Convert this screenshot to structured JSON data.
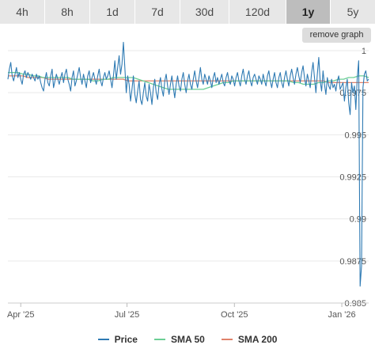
{
  "tabs": [
    {
      "label": "4h",
      "active": false
    },
    {
      "label": "8h",
      "active": false
    },
    {
      "label": "1d",
      "active": false
    },
    {
      "label": "7d",
      "active": false
    },
    {
      "label": "30d",
      "active": false
    },
    {
      "label": "120d",
      "active": false
    },
    {
      "label": "1y",
      "active": true
    },
    {
      "label": "5y",
      "active": false
    }
  ],
  "remove_graph_label": "remove graph",
  "colors": {
    "price": "#2e7ab3",
    "sma50": "#6ccf95",
    "sma200": "#e0826a",
    "grid": "#e9e9e9",
    "tab_bg": "#e7e7e7",
    "tab_active_bg": "#bdbdbd"
  },
  "chart_data": {
    "type": "line",
    "title": "",
    "xlabel": "",
    "ylabel": "",
    "ylim": [
      0.985,
      1.0
    ],
    "y_ticks": [
      1,
      0.9975,
      0.995,
      0.9925,
      0.99,
      0.9875,
      0.985
    ],
    "y_tick_labels": [
      "1",
      "0.9975",
      "0.995",
      "0.9925",
      "0.99",
      "0.9875",
      "0.985"
    ],
    "x_ticks": [
      "Apr '25",
      "Jul '25",
      "Oct '25",
      "Jan '26"
    ],
    "x_tick_dates": [
      "2025-04-01",
      "2025-07-01",
      "2025-10-01",
      "2026-01-01"
    ],
    "x_range": [
      "2025-03-21",
      "2026-01-24"
    ],
    "grid": true,
    "legend_position": "bottom",
    "series": [
      {
        "name": "Price",
        "start_date": "2025-03-21",
        "values": [
          0.9983,
          0.9989,
          0.9993,
          0.9985,
          0.9982,
          0.9986,
          0.999,
          0.9984,
          0.9987,
          0.9983,
          0.998,
          0.9986,
          0.9988,
          0.9984,
          0.9987,
          0.9985,
          0.9983,
          0.9986,
          0.9984,
          0.9982,
          0.9986,
          0.9983,
          0.9985,
          0.9981,
          0.9978,
          0.9976,
          0.9983,
          0.9987,
          0.9981,
          0.9979,
          0.9985,
          0.9989,
          0.9978,
          0.9982,
          0.9986,
          0.9983,
          0.998,
          0.9984,
          0.9987,
          0.9981,
          0.9986,
          0.9989,
          0.9983,
          0.998,
          0.9976,
          0.9984,
          0.9988,
          0.9979,
          0.9982,
          0.9986,
          0.999,
          0.9984,
          0.998,
          0.9986,
          0.9982,
          0.9978,
          0.9985,
          0.9988,
          0.9981,
          0.9984,
          0.9987,
          0.9983,
          0.998,
          0.9985,
          0.9989,
          0.9982,
          0.9979,
          0.9984,
          0.9987,
          0.9983,
          0.9985,
          0.9988,
          0.9983,
          0.9978,
          0.9985,
          0.9994,
          0.9983,
          0.999,
          0.9997,
          0.9986,
          0.9992,
          1.0005,
          0.999,
          0.9975,
          0.9985,
          0.998,
          0.997,
          0.9977,
          0.9985,
          0.9974,
          0.9969,
          0.9976,
          0.9982,
          0.9971,
          0.9968,
          0.9975,
          0.9981,
          0.9973,
          0.997,
          0.998,
          0.9975,
          0.9968,
          0.9978,
          0.9983,
          0.9975,
          0.9971,
          0.998,
          0.9984,
          0.9977,
          0.9973,
          0.9982,
          0.9986,
          0.9979,
          0.9974,
          0.998,
          0.9985,
          0.9978,
          0.9972,
          0.998,
          0.9985,
          0.9979,
          0.9976,
          0.9983,
          0.9987,
          0.998,
          0.9975,
          0.9982,
          0.9986,
          0.998,
          0.9977,
          0.9983,
          0.9988,
          0.9982,
          0.9978,
          0.9984,
          0.999,
          0.9983,
          0.998,
          0.9986,
          0.9983,
          0.998,
          0.9985,
          0.9982,
          0.9978,
          0.9984,
          0.9987,
          0.9981,
          0.9984,
          0.998,
          0.9983,
          0.9986,
          0.9981,
          0.9979,
          0.9984,
          0.9987,
          0.9982,
          0.998,
          0.9985,
          0.9983,
          0.9979,
          0.9984,
          0.9987,
          0.9982,
          0.9979,
          0.9985,
          0.9989,
          0.9983,
          0.998,
          0.9985,
          0.9988,
          0.9982,
          0.9979,
          0.9984,
          0.9986,
          0.9983,
          0.998,
          0.9985,
          0.9983,
          0.998,
          0.9986,
          0.9982,
          0.9979,
          0.9985,
          0.9988,
          0.9982,
          0.9978,
          0.9983,
          0.9987,
          0.9981,
          0.9978,
          0.9984,
          0.9987,
          0.9981,
          0.9978,
          0.9984,
          0.9988,
          0.9983,
          0.9979,
          0.9985,
          0.9989,
          0.9984,
          0.998,
          0.9986,
          0.999,
          0.9985,
          0.9981,
          0.9987,
          0.9991,
          0.9984,
          0.9979,
          0.9986,
          0.9982,
          0.9978,
          0.9987,
          0.9993,
          0.9984,
          0.9975,
          0.9986,
          0.9996,
          0.9982,
          0.9976,
          0.9988,
          0.998,
          0.9974,
          0.9984,
          0.9979,
          0.9977,
          0.9983,
          0.9978,
          0.998,
          0.9976,
          0.9982,
          0.9985,
          0.9977,
          0.9979,
          0.9981,
          0.997,
          0.9978,
          0.9983,
          0.9969,
          0.9962,
          0.9981,
          0.9975,
          0.9979,
          0.9965,
          0.9984,
          0.9994,
          0.986,
          0.9872,
          0.9978,
          0.9986,
          0.9988,
          0.9982,
          0.9983
        ]
      },
      {
        "name": "SMA 50",
        "start_date": "2025-03-21",
        "values": [
          0.9987,
          0.9987,
          0.9987,
          0.9986,
          0.9986,
          0.9985,
          0.9985,
          0.9984,
          0.9984,
          0.9984,
          0.9984,
          0.9984,
          0.9984,
          0.9983,
          0.9983,
          0.9983,
          0.9983,
          0.9982,
          0.9982,
          0.9983,
          0.9983,
          0.9984,
          0.9984,
          0.9984,
          0.9984,
          0.9984,
          0.9983,
          0.9982,
          0.9981,
          0.998,
          0.9979,
          0.9978,
          0.9977,
          0.9977,
          0.9977,
          0.9977,
          0.9977,
          0.9977,
          0.9977,
          0.9977,
          0.9978,
          0.9979,
          0.998,
          0.9981,
          0.9981,
          0.9982,
          0.9982,
          0.9982,
          0.9982,
          0.9982,
          0.9982,
          0.9982,
          0.9982,
          0.9982,
          0.9982,
          0.9982,
          0.9982,
          0.9981,
          0.9981,
          0.998,
          0.998,
          0.998,
          0.9981,
          0.9981,
          0.9982,
          0.9982,
          0.9983,
          0.9983,
          0.9984,
          0.9984,
          0.9985,
          0.9985,
          0.9984
        ]
      },
      {
        "name": "SMA 200",
        "start_date": "2025-03-21",
        "values": [
          0.9985,
          0.9985,
          0.9985,
          0.9985,
          0.9984,
          0.9984,
          0.9984,
          0.9984,
          0.9983,
          0.9983,
          0.9983,
          0.9983,
          0.9983,
          0.9983,
          0.9983,
          0.9983,
          0.9983,
          0.9983,
          0.9983,
          0.9983,
          0.9983,
          0.9983,
          0.9983,
          0.9983,
          0.9982,
          0.9982,
          0.9982,
          0.9982,
          0.9982,
          0.9982,
          0.9982,
          0.9982,
          0.9982,
          0.9982,
          0.9982,
          0.9982,
          0.9982,
          0.9982,
          0.9982,
          0.9982,
          0.9982,
          0.9982,
          0.9982,
          0.9982,
          0.9982,
          0.9982,
          0.9982,
          0.9982,
          0.9982,
          0.9982,
          0.9982,
          0.9982,
          0.9982,
          0.9982,
          0.9982,
          0.9982,
          0.9982,
          0.9982,
          0.9982,
          0.9982,
          0.9982,
          0.9982,
          0.9982,
          0.9982,
          0.9981,
          0.9981,
          0.9981,
          0.9981,
          0.9981,
          0.9981,
          0.9981,
          0.9981,
          0.9981
        ]
      }
    ]
  }
}
